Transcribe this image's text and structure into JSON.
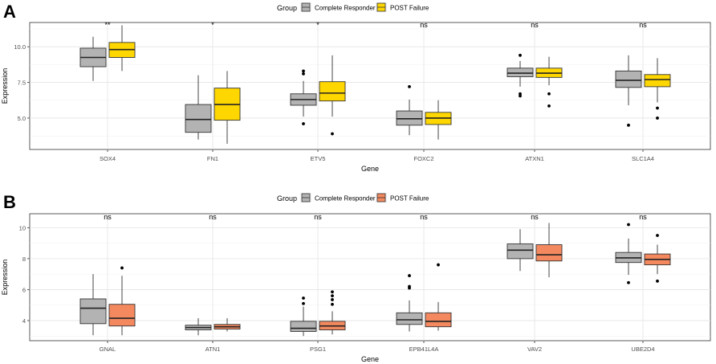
{
  "chart_data": [
    {
      "type": "box",
      "panel_label": "A",
      "title": "",
      "xlabel": "Gene",
      "ylabel": "Expression",
      "ylim": [
        2.8,
        11.7
      ],
      "yticks": [
        5.0,
        7.5,
        10.0
      ],
      "ytick_labels": [
        "5.0",
        "7.5",
        "10.0"
      ],
      "grid": true,
      "legend": {
        "title": "Group",
        "placement": "top-center",
        "entries": [
          {
            "name": "Complete Responder",
            "color": "#b3b3b3"
          },
          {
            "name": "POST Failure",
            "color": "#ffd700"
          }
        ]
      },
      "categories": [
        "SOX4",
        "FN1",
        "ETV5",
        "FOXC2",
        "ATXN1",
        "SLC1A4"
      ],
      "significance": [
        "**",
        "*",
        "*",
        "ns",
        "ns",
        "ns"
      ],
      "series": [
        {
          "name": "Complete Responder",
          "boxes": [
            {
              "whislo": 7.6,
              "q1": 8.6,
              "med": 9.25,
              "q3": 9.9,
              "whishi": 10.7,
              "fliers": []
            },
            {
              "whislo": 3.5,
              "q1": 4.0,
              "med": 4.9,
              "q3": 5.95,
              "whishi": 8.0,
              "fliers": []
            },
            {
              "whislo": 5.1,
              "q1": 5.9,
              "med": 6.3,
              "q3": 6.7,
              "whishi": 7.6,
              "fliers": [
                8.1,
                8.3,
                4.6
              ]
            },
            {
              "whislo": 3.8,
              "q1": 4.5,
              "med": 4.95,
              "q3": 5.5,
              "whishi": 6.3,
              "fliers": [
                7.2
              ]
            },
            {
              "whislo": 7.2,
              "q1": 7.9,
              "med": 8.15,
              "q3": 8.5,
              "whishi": 9.0,
              "fliers": [
                9.4,
                6.7,
                6.55
              ]
            },
            {
              "whislo": 5.9,
              "q1": 7.15,
              "med": 7.65,
              "q3": 8.3,
              "whishi": 9.4,
              "fliers": [
                4.5
              ]
            }
          ]
        },
        {
          "name": "POST Failure",
          "boxes": [
            {
              "whislo": 8.3,
              "q1": 9.25,
              "med": 9.8,
              "q3": 10.3,
              "whishi": 11.5,
              "fliers": []
            },
            {
              "whislo": 3.2,
              "q1": 4.85,
              "med": 5.95,
              "q3": 7.1,
              "whishi": 8.3,
              "fliers": []
            },
            {
              "whislo": 5.1,
              "q1": 6.2,
              "med": 6.75,
              "q3": 7.55,
              "whishi": 9.4,
              "fliers": [
                3.9
              ]
            },
            {
              "whislo": 3.5,
              "q1": 4.55,
              "med": 5.0,
              "q3": 5.4,
              "whishi": 6.25,
              "fliers": []
            },
            {
              "whislo": 7.3,
              "q1": 7.85,
              "med": 8.15,
              "q3": 8.5,
              "whishi": 9.3,
              "fliers": [
                6.7,
                5.85
              ]
            },
            {
              "whislo": 6.1,
              "q1": 7.2,
              "med": 7.7,
              "q3": 8.05,
              "whishi": 9.2,
              "fliers": [
                5.7,
                5.0
              ]
            }
          ]
        }
      ]
    },
    {
      "type": "box",
      "panel_label": "B",
      "title": "",
      "xlabel": "Gene",
      "ylabel": "Expression",
      "ylim": [
        2.7,
        10.9
      ],
      "yticks": [
        4,
        6,
        8,
        10
      ],
      "ytick_labels": [
        "4",
        "6",
        "8",
        "10"
      ],
      "grid": true,
      "legend": {
        "title": "Group",
        "placement": "top-center",
        "entries": [
          {
            "name": "Complete Responder",
            "color": "#b3b3b3"
          },
          {
            "name": "POST Failure",
            "color": "#f4895f"
          }
        ]
      },
      "categories": [
        "GNAL",
        "ATN1",
        "PSG1",
        "EPB41L4A",
        "VAV2",
        "UBE2D4"
      ],
      "significance": [
        "ns",
        "ns",
        "ns",
        "ns",
        "ns",
        "ns"
      ],
      "series": [
        {
          "name": "Complete Responder",
          "boxes": [
            {
              "whislo": 3.05,
              "q1": 3.8,
              "med": 4.8,
              "q3": 5.4,
              "whishi": 7.0,
              "fliers": []
            },
            {
              "whislo": 3.05,
              "q1": 3.4,
              "med": 3.55,
              "q3": 3.7,
              "whishi": 4.15,
              "fliers": []
            },
            {
              "whislo": 3.0,
              "q1": 3.3,
              "med": 3.5,
              "q3": 3.95,
              "whishi": 4.9,
              "fliers": [
                5.45,
                5.1
              ]
            },
            {
              "whislo": 3.3,
              "q1": 3.75,
              "med": 4.05,
              "q3": 4.5,
              "whishi": 5.3,
              "fliers": [
                6.9,
                6.2,
                6.1
              ]
            },
            {
              "whislo": 7.2,
              "q1": 8.0,
              "med": 8.55,
              "q3": 8.95,
              "whishi": 9.9,
              "fliers": []
            },
            {
              "whislo": 6.95,
              "q1": 7.75,
              "med": 8.05,
              "q3": 8.4,
              "whishi": 9.3,
              "fliers": [
                10.2,
                6.45
              ]
            }
          ]
        },
        {
          "name": "POST Failure",
          "boxes": [
            {
              "whislo": 3.05,
              "q1": 3.65,
              "med": 4.15,
              "q3": 5.05,
              "whishi": 6.9,
              "fliers": [
                7.4
              ]
            },
            {
              "whislo": 3.3,
              "q1": 3.45,
              "med": 3.6,
              "q3": 3.75,
              "whishi": 4.15,
              "fliers": []
            },
            {
              "whislo": 3.1,
              "q1": 3.4,
              "med": 3.65,
              "q3": 3.95,
              "whishi": 4.6,
              "fliers": [
                5.85,
                5.6,
                5.35,
                5.05
              ]
            },
            {
              "whislo": 3.35,
              "q1": 3.6,
              "med": 3.95,
              "q3": 4.5,
              "whishi": 5.2,
              "fliers": [
                7.6
              ]
            },
            {
              "whislo": 6.8,
              "q1": 7.85,
              "med": 8.25,
              "q3": 8.9,
              "whishi": 10.3,
              "fliers": []
            },
            {
              "whislo": 7.0,
              "q1": 7.6,
              "med": 7.95,
              "q3": 8.3,
              "whishi": 8.9,
              "fliers": [
                9.5,
                6.55
              ]
            }
          ]
        }
      ]
    }
  ]
}
